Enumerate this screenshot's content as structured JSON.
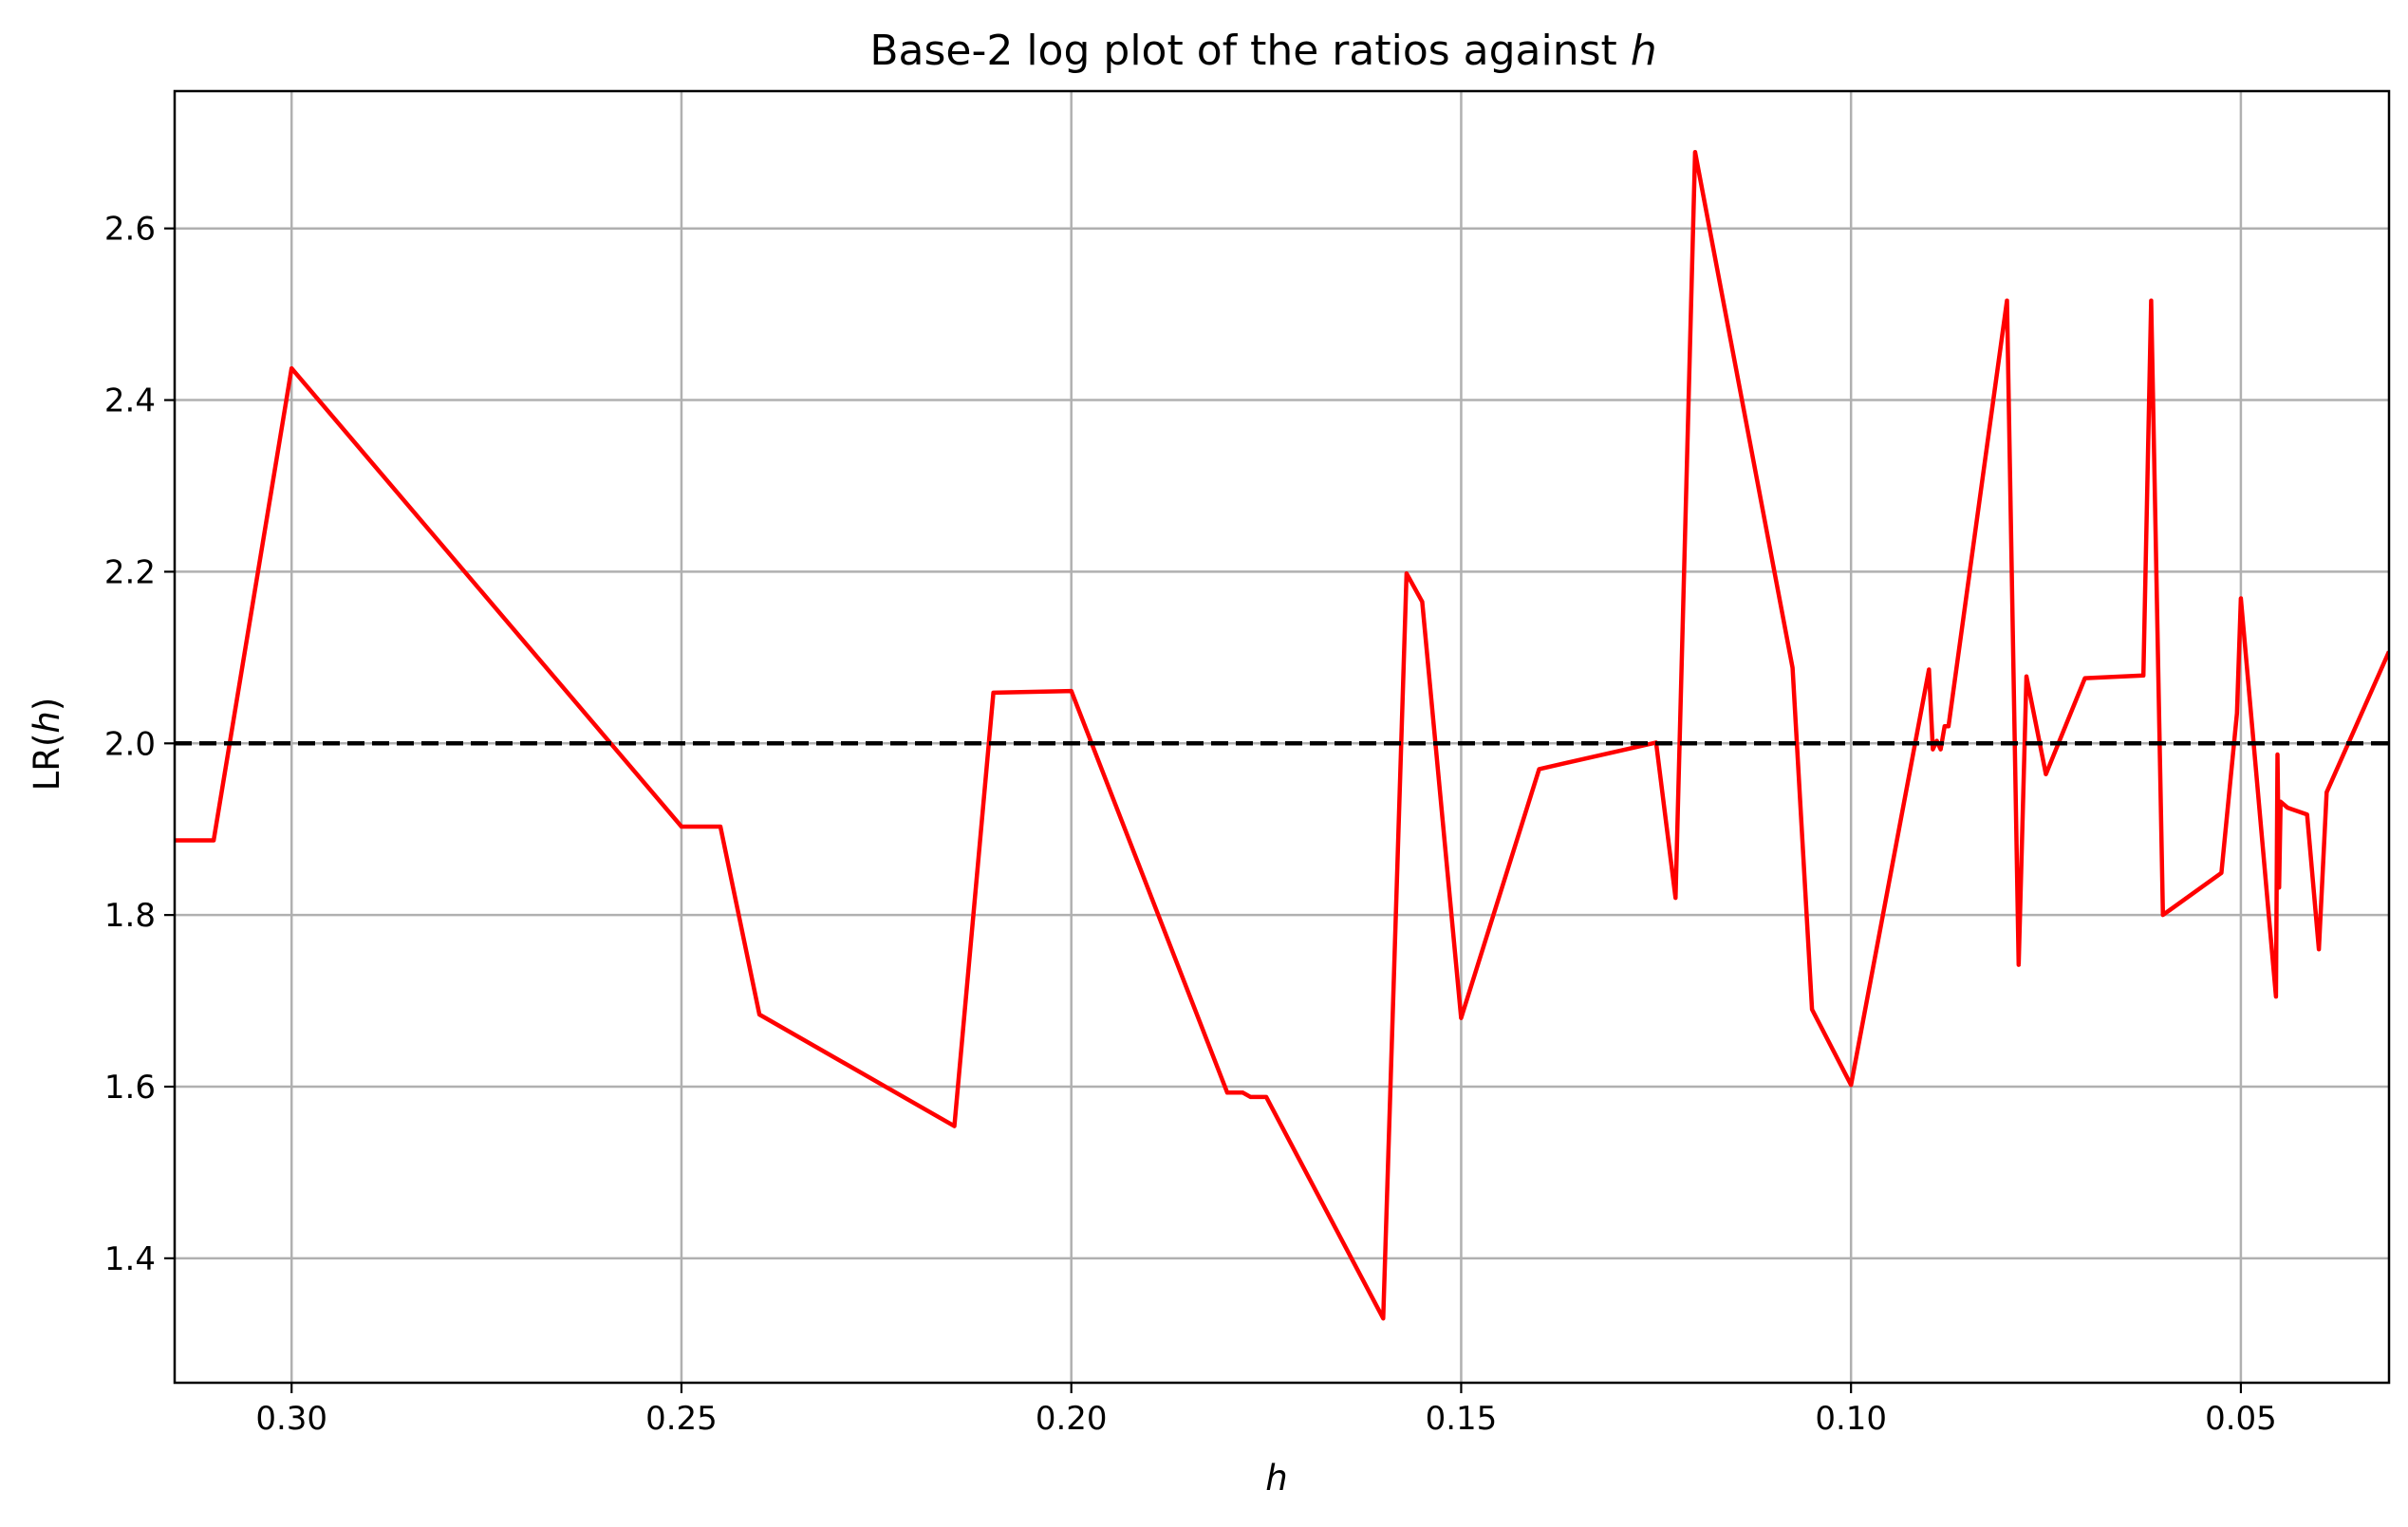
{
  "chart_data": {
    "type": "line",
    "title_prefix": "Base-2 log plot of the ratios against ",
    "title_var": "h",
    "xlabel": "h",
    "ylabel_prefix": "LR(",
    "ylabel_var": "h",
    "ylabel_suffix": ")",
    "x_inverted": true,
    "xlim": [
      0.315,
      0.031
    ],
    "ylim": [
      1.255,
      2.76
    ],
    "grid": true,
    "x_ticks": [
      0.3,
      0.25,
      0.2,
      0.15,
      0.1,
      0.05
    ],
    "x_tick_labels": [
      "0.30",
      "0.25",
      "0.20",
      "0.15",
      "0.10",
      "0.05"
    ],
    "y_ticks": [
      1.4,
      1.6,
      1.8,
      2.0,
      2.2,
      2.4,
      2.6
    ],
    "y_tick_labels": [
      "1.4",
      "1.6",
      "1.8",
      "2.0",
      "2.2",
      "2.4",
      "2.6"
    ],
    "reference_line": {
      "y": 2.0,
      "style": "dashed",
      "color": "#000000"
    },
    "series": [
      {
        "color": "#ff0000",
        "x": [
          0.315,
          0.31,
          0.3,
          0.25,
          0.245,
          0.24,
          0.215,
          0.21,
          0.2,
          0.18,
          0.178,
          0.177,
          0.175,
          0.16,
          0.157,
          0.155,
          0.15,
          0.14,
          0.125,
          0.1225,
          0.12,
          0.1075,
          0.105,
          0.1,
          0.09,
          0.0895,
          0.089,
          0.0885,
          0.088,
          0.0875,
          0.08,
          0.0785,
          0.0775,
          0.075,
          0.07,
          0.0625,
          0.0615,
          0.06,
          0.0525,
          0.0505,
          0.05,
          0.0455,
          0.0453,
          0.0451,
          0.0449,
          0.044,
          0.0415,
          0.04,
          0.039,
          0.031
        ],
        "y": [
          1.887,
          1.887,
          2.437,
          1.903,
          1.903,
          1.684,
          1.554,
          2.059,
          2.061,
          1.593,
          1.593,
          1.588,
          1.588,
          1.33,
          2.198,
          2.165,
          1.68,
          1.97,
          2.001,
          1.82,
          2.689,
          2.088,
          1.69,
          1.602,
          2.086,
          1.993,
          2.003,
          1.993,
          2.02,
          2.02,
          2.516,
          1.742,
          2.078,
          1.964,
          2.076,
          2.079,
          2.516,
          1.8,
          1.849,
          2.035,
          2.169,
          1.705,
          1.987,
          1.832,
          1.932,
          1.925,
          1.917,
          1.76,
          1.943,
          2.107
        ]
      }
    ]
  }
}
